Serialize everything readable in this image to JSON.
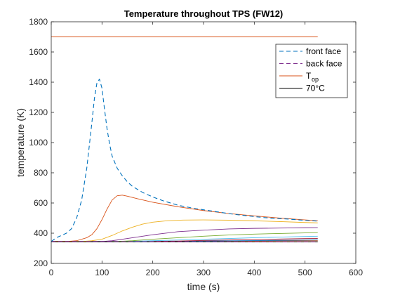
{
  "chart_data": {
    "type": "line",
    "title": "Temperature throughout TPS (FW12)",
    "xlabel": "time (s)",
    "ylabel": "temperature (K)",
    "xlim": [
      0,
      600
    ],
    "ylim": [
      200,
      1800
    ],
    "x_ticks": [
      "0",
      "100",
      "200",
      "300",
      "400",
      "500",
      "600"
    ],
    "y_ticks": [
      "200",
      "400",
      "600",
      "800",
      "1000",
      "1200",
      "1400",
      "1600",
      "1800"
    ],
    "grid": false,
    "legend_position": "top-right",
    "legend": [
      {
        "key": "front",
        "label": "front face"
      },
      {
        "key": "back",
        "label": "back face"
      },
      {
        "key": "top",
        "label": "T",
        "subscript": "op"
      },
      {
        "key": "limit70",
        "label": "70°C"
      }
    ],
    "series": [
      {
        "key": "front",
        "name": "front face",
        "color": "#0072BD",
        "style": "dashed",
        "x": [
          0,
          10,
          20,
          30,
          40,
          50,
          60,
          70,
          80,
          85,
          90,
          95,
          100,
          105,
          110,
          115,
          120,
          130,
          140,
          150,
          160,
          180,
          200,
          220,
          250,
          280,
          300,
          330,
          360,
          400,
          430,
          460,
          500,
          525
        ],
        "y": [
          345,
          370,
          385,
          400,
          430,
          500,
          620,
          830,
          1130,
          1290,
          1395,
          1420,
          1360,
          1220,
          1090,
          990,
          910,
          830,
          780,
          740,
          710,
          670,
          640,
          615,
          585,
          565,
          555,
          540,
          525,
          510,
          500,
          495,
          485,
          480
        ]
      },
      {
        "key": "back",
        "name": "back face",
        "color": "#7E2F8E",
        "style": "dashed",
        "x": [
          0,
          100,
          200,
          300,
          400,
          525
        ],
        "y": [
          345,
          345,
          344,
          343,
          342,
          342
        ]
      },
      {
        "key": "top",
        "name": "T_op",
        "color": "#D95319",
        "style": "solid",
        "x": [
          0,
          525
        ],
        "y": [
          1700,
          1700
        ]
      },
      {
        "key": "limit70",
        "name": "70°C",
        "color": "#000000",
        "style": "solid",
        "x": [
          0,
          525
        ],
        "y": [
          343,
          343
        ]
      },
      {
        "key": "layer1",
        "color": "#D95319",
        "style": "solid",
        "x": [
          0,
          30,
          50,
          70,
          80,
          90,
          100,
          110,
          120,
          130,
          140,
          150,
          170,
          200,
          250,
          300,
          350,
          400,
          450,
          500,
          525
        ],
        "y": [
          345,
          345,
          350,
          370,
          390,
          430,
          490,
          560,
          620,
          648,
          652,
          645,
          628,
          605,
          575,
          550,
          530,
          515,
          500,
          488,
          482
        ]
      },
      {
        "key": "layer2",
        "color": "#EDB120",
        "style": "solid",
        "x": [
          0,
          60,
          80,
          100,
          120,
          140,
          160,
          180,
          200,
          230,
          260,
          300,
          350,
          400,
          450,
          500,
          525
        ],
        "y": [
          345,
          345,
          350,
          360,
          385,
          415,
          440,
          460,
          473,
          483,
          487,
          488,
          486,
          482,
          477,
          471,
          468
        ]
      },
      {
        "key": "layer3",
        "color": "#7E2F8E",
        "style": "solid",
        "x": [
          0,
          100,
          120,
          150,
          200,
          250,
          300,
          350,
          400,
          450,
          500,
          525
        ],
        "y": [
          345,
          345,
          350,
          365,
          390,
          410,
          420,
          428,
          432,
          434,
          436,
          437
        ]
      },
      {
        "key": "layer4",
        "color": "#77AC30",
        "style": "solid",
        "x": [
          0,
          130,
          160,
          200,
          250,
          300,
          350,
          400,
          450,
          500,
          525
        ],
        "y": [
          345,
          345,
          350,
          360,
          370,
          380,
          388,
          394,
          398,
          402,
          404
        ]
      },
      {
        "key": "layer5",
        "color": "#4DBEEE",
        "style": "solid",
        "x": [
          0,
          150,
          200,
          250,
          300,
          350,
          400,
          450,
          500,
          525
        ],
        "y": [
          345,
          345,
          350,
          355,
          360,
          365,
          370,
          374,
          378,
          380
        ]
      },
      {
        "key": "layer6",
        "color": "#A2142F",
        "style": "solid",
        "x": [
          0,
          180,
          250,
          300,
          350,
          400,
          450,
          500,
          525
        ],
        "y": [
          345,
          345,
          348,
          352,
          355,
          358,
          361,
          364,
          365
        ]
      },
      {
        "key": "layer7",
        "color": "#0072BD",
        "style": "solid",
        "x": [
          0,
          200,
          300,
          400,
          500,
          525
        ],
        "y": [
          345,
          345,
          348,
          351,
          354,
          355
        ]
      },
      {
        "key": "layer8",
        "color": "#D95319",
        "style": "solid",
        "x": [
          0,
          250,
          350,
          450,
          525
        ],
        "y": [
          345,
          345,
          347,
          349,
          350
        ]
      }
    ]
  }
}
